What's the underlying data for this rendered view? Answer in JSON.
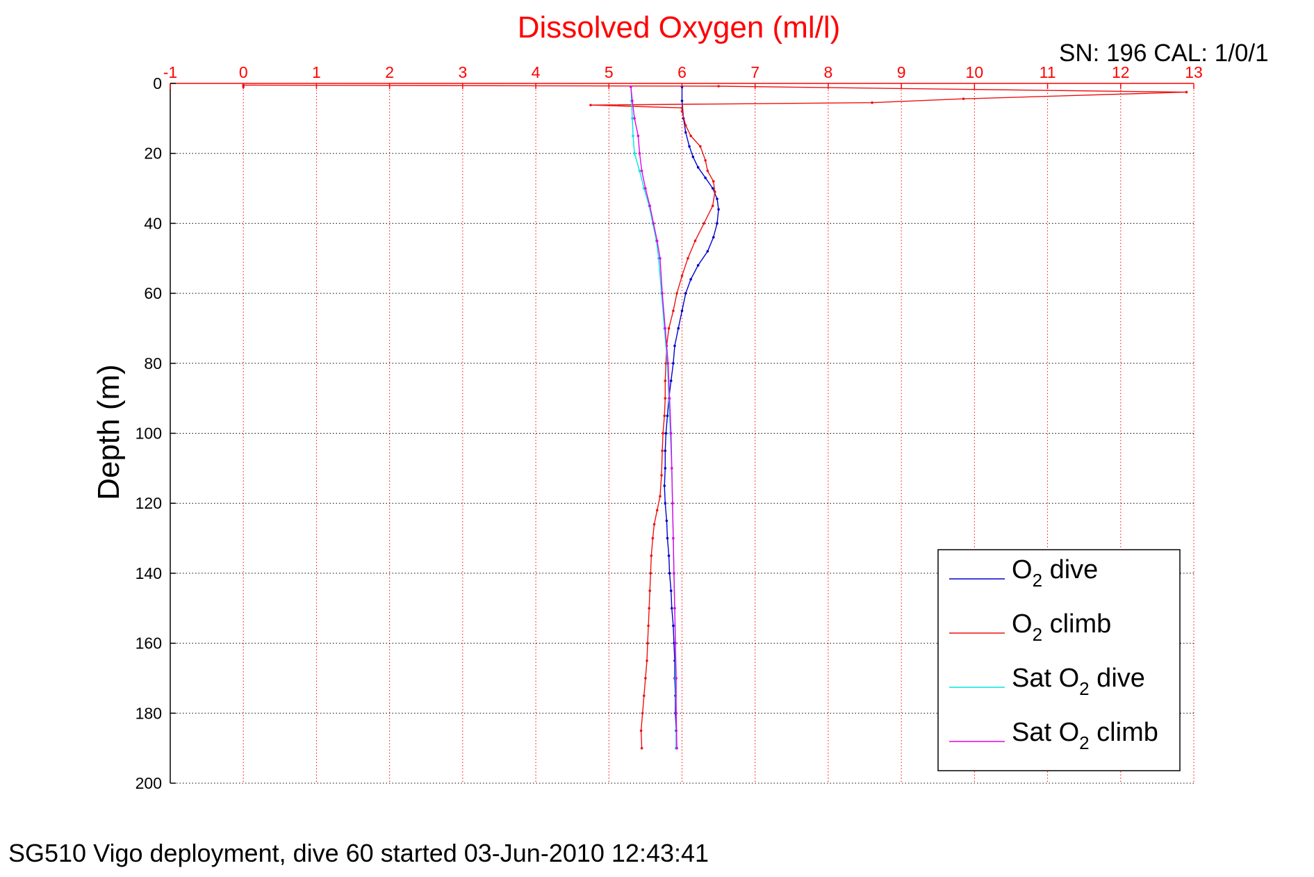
{
  "figure": {
    "title": "Dissolved Oxygen (ml/l)",
    "serial_cal": "SN: 196  CAL: 1/0/1",
    "footer": "SG510 Vigo deployment, dive 60 started 03-Jun-2010 12:43:41"
  },
  "legend": {
    "items": [
      {
        "main": "O",
        "sub": "2",
        "rest": " dive",
        "color": "#0000cc"
      },
      {
        "main": "O",
        "sub": "2",
        "rest": " climb",
        "color": "#ee1111"
      },
      {
        "main": "Sat O",
        "sub": "2",
        "rest": " dive",
        "color": "#00e5e5"
      },
      {
        "main": "Sat O",
        "sub": "2",
        "rest": " climb",
        "color": "#e500e5"
      }
    ]
  },
  "colors": {
    "axis_top": "#ff0000",
    "axis_left": "#000000",
    "grid_vertical": "#ff0000",
    "grid_horizontal": "#000000"
  },
  "chart_data": {
    "type": "line",
    "title": "Dissolved Oxygen (ml/l)",
    "xlabel": "",
    "ylabel": "Depth (m)",
    "xlim": [
      -1,
      13
    ],
    "ylim": [
      0,
      200
    ],
    "y_reversed": true,
    "x_axis_position": "top",
    "x_ticks": [
      -1,
      0,
      1,
      2,
      3,
      4,
      5,
      6,
      7,
      8,
      9,
      10,
      11,
      12,
      13
    ],
    "y_ticks": [
      0,
      20,
      40,
      60,
      80,
      100,
      120,
      140,
      160,
      180,
      200
    ],
    "grid": true,
    "legend_position": "bottom-right",
    "series": [
      {
        "name": "O2 dive",
        "color": "#0000cc",
        "points": [
          [
            6.0,
            1
          ],
          [
            6.0,
            5
          ],
          [
            6.02,
            10
          ],
          [
            6.05,
            14
          ],
          [
            6.1,
            18
          ],
          [
            6.15,
            21
          ],
          [
            6.22,
            24
          ],
          [
            6.32,
            27
          ],
          [
            6.42,
            30
          ],
          [
            6.48,
            33
          ],
          [
            6.5,
            36
          ],
          [
            6.48,
            40
          ],
          [
            6.43,
            44
          ],
          [
            6.35,
            48
          ],
          [
            6.22,
            52
          ],
          [
            6.12,
            56
          ],
          [
            6.05,
            60
          ],
          [
            6.0,
            65
          ],
          [
            5.95,
            70
          ],
          [
            5.9,
            75
          ],
          [
            5.88,
            80
          ],
          [
            5.85,
            85
          ],
          [
            5.82,
            90
          ],
          [
            5.8,
            95
          ],
          [
            5.78,
            100
          ],
          [
            5.77,
            105
          ],
          [
            5.77,
            110
          ],
          [
            5.76,
            115
          ],
          [
            5.77,
            120
          ],
          [
            5.79,
            125
          ],
          [
            5.8,
            130
          ],
          [
            5.82,
            135
          ],
          [
            5.83,
            140
          ],
          [
            5.85,
            145
          ],
          [
            5.86,
            150
          ],
          [
            5.88,
            155
          ],
          [
            5.89,
            160
          ],
          [
            5.9,
            165
          ],
          [
            5.9,
            170
          ],
          [
            5.91,
            175
          ],
          [
            5.91,
            180
          ],
          [
            5.92,
            185
          ],
          [
            5.92,
            190
          ]
        ]
      },
      {
        "name": "O2 climb",
        "color": "#ee1111",
        "points": [
          [
            5.45,
            190
          ],
          [
            5.44,
            185
          ],
          [
            5.46,
            180
          ],
          [
            5.48,
            175
          ],
          [
            5.5,
            170
          ],
          [
            5.52,
            165
          ],
          [
            5.53,
            160
          ],
          [
            5.54,
            155
          ],
          [
            5.55,
            150
          ],
          [
            5.56,
            145
          ],
          [
            5.57,
            140
          ],
          [
            5.58,
            135
          ],
          [
            5.6,
            130
          ],
          [
            5.62,
            126
          ],
          [
            5.66,
            122
          ],
          [
            5.7,
            118
          ],
          [
            5.72,
            112
          ],
          [
            5.73,
            105
          ],
          [
            5.74,
            100
          ],
          [
            5.76,
            95
          ],
          [
            5.77,
            90
          ],
          [
            5.77,
            85
          ],
          [
            5.78,
            80
          ],
          [
            5.79,
            75
          ],
          [
            5.82,
            70
          ],
          [
            5.88,
            65
          ],
          [
            5.93,
            60
          ],
          [
            6.0,
            55
          ],
          [
            6.08,
            50
          ],
          [
            6.18,
            45
          ],
          [
            6.3,
            40
          ],
          [
            6.42,
            35
          ],
          [
            6.45,
            31
          ],
          [
            6.43,
            28
          ],
          [
            6.35,
            25
          ],
          [
            6.32,
            22
          ],
          [
            6.25,
            18
          ],
          [
            6.12,
            15
          ],
          [
            6.05,
            12
          ],
          [
            6.0,
            8
          ],
          [
            6.0,
            7
          ],
          [
            4.75,
            6.2
          ],
          [
            8.6,
            5.5
          ],
          [
            9.85,
            4.4
          ],
          [
            12.9,
            2.5
          ],
          [
            6.5,
            0.8
          ],
          [
            0.0,
            0.5
          ],
          [
            0.0,
            1.0
          ]
        ]
      },
      {
        "name": "Sat O2 dive",
        "color": "#00e5e5",
        "points": [
          [
            5.3,
            1
          ],
          [
            5.31,
            5
          ],
          [
            5.32,
            10
          ],
          [
            5.33,
            15
          ],
          [
            5.35,
            20
          ],
          [
            5.42,
            25
          ],
          [
            5.48,
            30
          ],
          [
            5.55,
            35
          ],
          [
            5.6,
            40
          ],
          [
            5.65,
            45
          ],
          [
            5.68,
            50
          ],
          [
            5.72,
            60
          ],
          [
            5.76,
            70
          ],
          [
            5.8,
            80
          ],
          [
            5.82,
            90
          ],
          [
            5.84,
            100
          ],
          [
            5.86,
            110
          ],
          [
            5.87,
            120
          ],
          [
            5.88,
            130
          ],
          [
            5.89,
            140
          ],
          [
            5.9,
            150
          ],
          [
            5.91,
            160
          ],
          [
            5.91,
            170
          ],
          [
            5.92,
            180
          ],
          [
            5.92,
            190
          ]
        ]
      },
      {
        "name": "Sat O2 climb",
        "color": "#e500e5",
        "points": [
          [
            5.93,
            190
          ],
          [
            5.92,
            180
          ],
          [
            5.92,
            170
          ],
          [
            5.91,
            160
          ],
          [
            5.9,
            150
          ],
          [
            5.89,
            140
          ],
          [
            5.88,
            130
          ],
          [
            5.87,
            120
          ],
          [
            5.86,
            110
          ],
          [
            5.85,
            100
          ],
          [
            5.83,
            90
          ],
          [
            5.81,
            80
          ],
          [
            5.77,
            70
          ],
          [
            5.73,
            60
          ],
          [
            5.7,
            50
          ],
          [
            5.66,
            45
          ],
          [
            5.61,
            40
          ],
          [
            5.56,
            35
          ],
          [
            5.5,
            30
          ],
          [
            5.45,
            25
          ],
          [
            5.42,
            20
          ],
          [
            5.4,
            15
          ],
          [
            5.35,
            10
          ],
          [
            5.32,
            5
          ],
          [
            5.3,
            1
          ]
        ]
      }
    ]
  }
}
